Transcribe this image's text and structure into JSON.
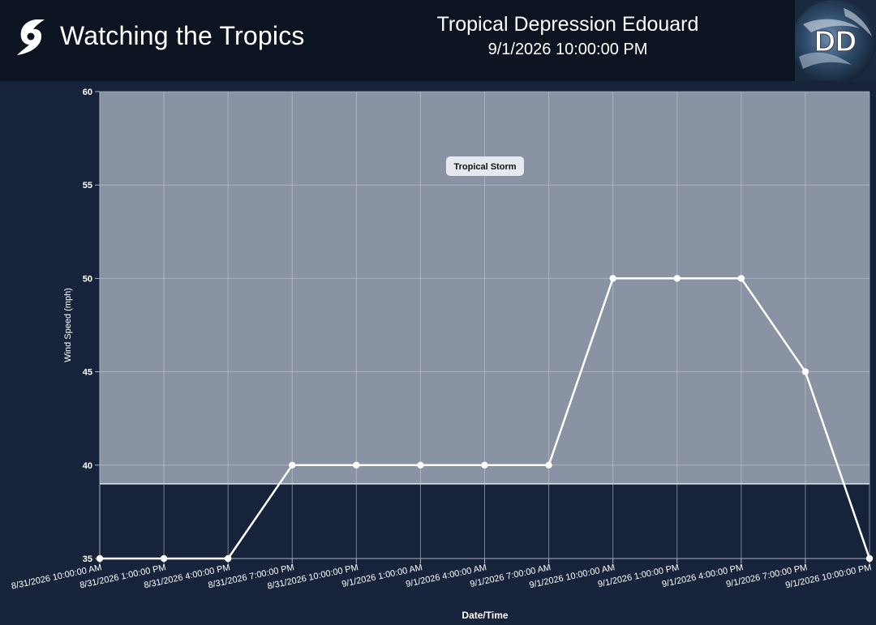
{
  "header": {
    "brand_title": "Watching the Tropics",
    "storm_name": "Tropical Depression Edouard",
    "storm_time": "9/1/2026 10:00:00 PM",
    "logo_text": "DD"
  },
  "chart_data": {
    "type": "line",
    "xlabel": "Date/Time",
    "ylabel": "Wind Speed (mph)",
    "ylim": [
      35,
      60
    ],
    "yticks": [
      35,
      40,
      45,
      50,
      55,
      60
    ],
    "grid": true,
    "categories": [
      "8/31/2026 10:00:00 AM",
      "8/31/2026 1:00:00 PM",
      "8/31/2026 4:00:00 PM",
      "8/31/2026 7:00:00 PM",
      "8/31/2026 10:00:00 PM",
      "9/1/2026 1:00:00 AM",
      "9/1/2026 4:00:00 AM",
      "9/1/2026 7:00:00 AM",
      "9/1/2026 10:00:00 AM",
      "9/1/2026 1:00:00 PM",
      "9/1/2026 4:00:00 PM",
      "9/1/2026 7:00:00 PM",
      "9/1/2026 10:00:00 PM"
    ],
    "series": [
      {
        "values": [
          35,
          35,
          35,
          40,
          40,
          40,
          40,
          40,
          50,
          50,
          50,
          45,
          35
        ],
        "color": "#ffffff"
      }
    ],
    "band": {
      "label": "Tropical Storm",
      "from": 39,
      "to": 60,
      "color": "#8a93a3"
    },
    "colors": {
      "background": "#17233a",
      "grid": "#c9ced8",
      "axis_text": "#ffffff"
    }
  }
}
